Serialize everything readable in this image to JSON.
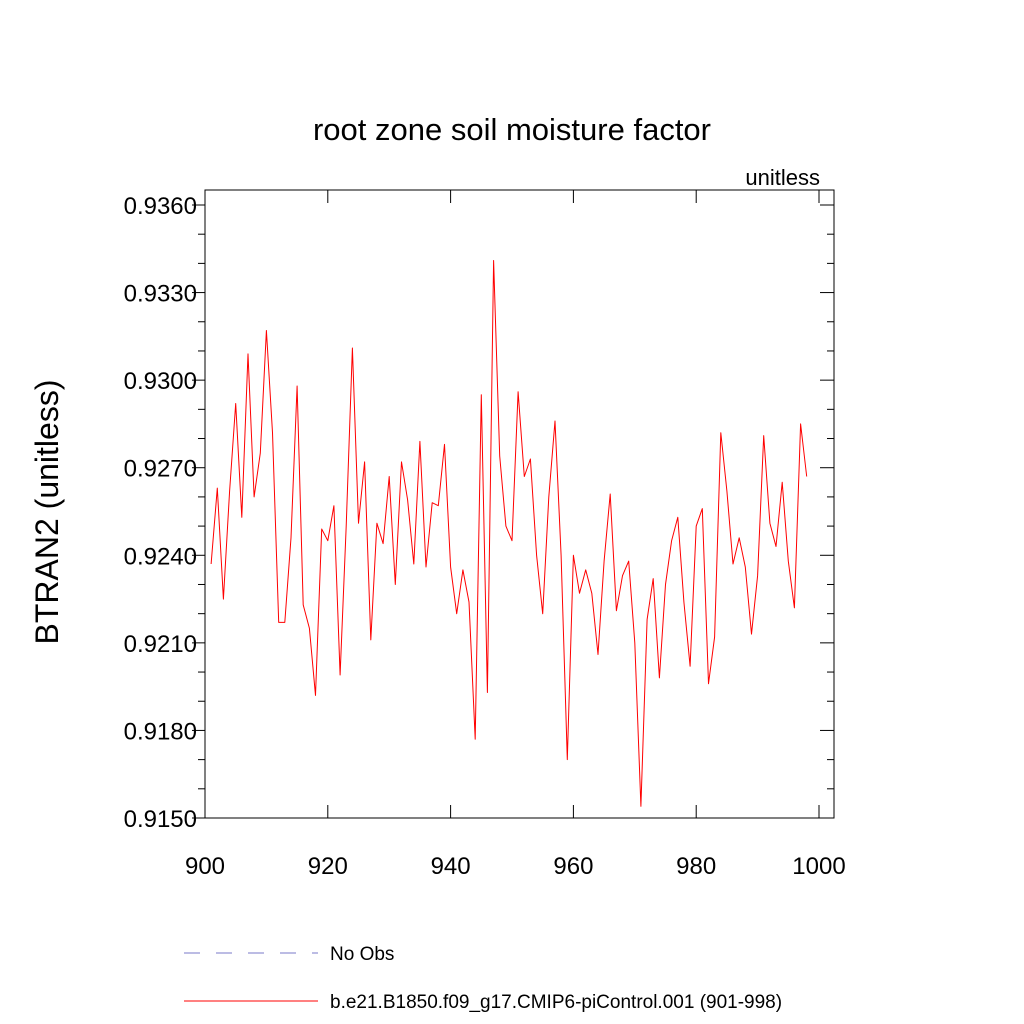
{
  "chart_data": {
    "type": "line",
    "title": "root zone soil moisture factor",
    "units_label": "unitless",
    "ylabel": "BTRAN2  (unitless)",
    "xlabel": "",
    "xlim": [
      900,
      1000
    ],
    "ylim": [
      0.915,
      0.936
    ],
    "xticks": [
      900,
      920,
      940,
      960,
      980,
      1000
    ],
    "xtick_labels": [
      "900",
      "920",
      "940",
      "960",
      "980",
      "1000"
    ],
    "yticks": [
      0.915,
      0.918,
      0.921,
      0.924,
      0.927,
      0.93,
      0.933,
      0.936
    ],
    "ytick_labels": [
      "0.9150",
      "0.9180",
      "0.9210",
      "0.9240",
      "0.9270",
      "0.9300",
      "0.9330",
      "0.9360"
    ],
    "series": [
      {
        "name": "b.e21.B1850.f09_g17.CMIP6-piControl.001 (901-998)",
        "color": "#ff0000",
        "x": [
          901,
          902,
          903,
          904,
          905,
          906,
          907,
          908,
          909,
          910,
          911,
          912,
          913,
          914,
          915,
          916,
          917,
          918,
          919,
          920,
          921,
          922,
          923,
          924,
          925,
          926,
          927,
          928,
          929,
          930,
          931,
          932,
          933,
          934,
          935,
          936,
          937,
          938,
          939,
          940,
          941,
          942,
          943,
          944,
          945,
          946,
          947,
          948,
          949,
          950,
          951,
          952,
          953,
          954,
          955,
          956,
          957,
          958,
          959,
          960,
          961,
          962,
          963,
          964,
          965,
          966,
          967,
          968,
          969,
          970,
          971,
          972,
          973,
          974,
          975,
          976,
          977,
          978,
          979,
          980,
          981,
          982,
          983,
          984,
          985,
          986,
          987,
          988,
          989,
          990,
          991,
          992,
          993,
          994,
          995,
          996,
          997,
          998
        ],
        "values": [
          0.9237,
          0.9263,
          0.9225,
          0.9262,
          0.9292,
          0.9253,
          0.9309,
          0.926,
          0.9275,
          0.9317,
          0.9282,
          0.9217,
          0.9217,
          0.9246,
          0.9298,
          0.9223,
          0.9215,
          0.9192,
          0.9249,
          0.9245,
          0.9257,
          0.9199,
          0.925,
          0.9311,
          0.9251,
          0.9272,
          0.9211,
          0.9251,
          0.9244,
          0.9267,
          0.923,
          0.9272,
          0.9259,
          0.9237,
          0.9279,
          0.9236,
          0.9258,
          0.9257,
          0.9278,
          0.9236,
          0.922,
          0.9235,
          0.9224,
          0.9177,
          0.9295,
          0.9193,
          0.9341,
          0.9274,
          0.925,
          0.9245,
          0.9296,
          0.9267,
          0.9273,
          0.924,
          0.922,
          0.926,
          0.9286,
          0.924,
          0.917,
          0.924,
          0.9227,
          0.9235,
          0.9227,
          0.9206,
          0.9238,
          0.9261,
          0.9221,
          0.9233,
          0.9238,
          0.921,
          0.9154,
          0.9218,
          0.9232,
          0.9198,
          0.923,
          0.9245,
          0.9253,
          0.9224,
          0.9202,
          0.925,
          0.9256,
          0.9196,
          0.9212,
          0.9282,
          0.9262,
          0.9237,
          0.9246,
          0.9236,
          0.9213,
          0.9233,
          0.9281,
          0.9251,
          0.9243,
          0.9265,
          0.9238,
          0.9222,
          0.9285,
          0.9267
        ]
      }
    ],
    "legend": [
      {
        "label": "No Obs",
        "style": "dashed",
        "color": "#7a7ac8"
      },
      {
        "label": "b.e21.B1850.f09_g17.CMIP6-piControl.001 (901-998)",
        "style": "solid",
        "color": "#ff0000"
      }
    ]
  }
}
